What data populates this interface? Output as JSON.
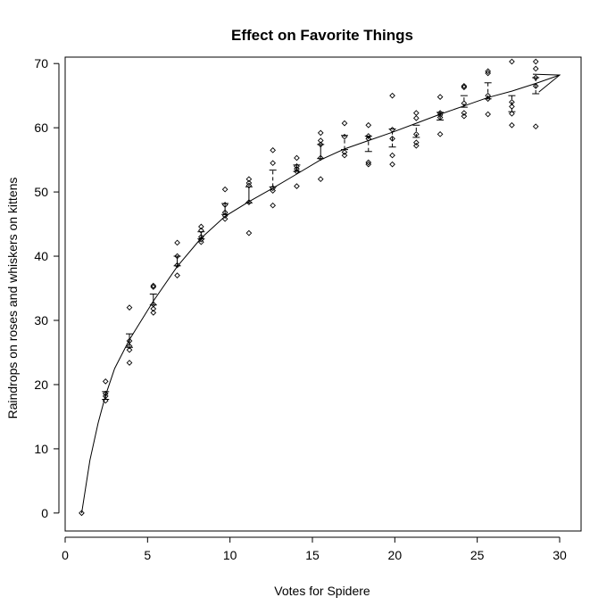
{
  "chart_data": {
    "type": "scatter",
    "title": "Effect on Favorite Things",
    "xlabel": "Votes for Spidere",
    "ylabel": "Raindrops on roses and whiskers on kittens",
    "xlim": [
      0,
      31.3
    ],
    "ylim": [
      -2.8,
      71
    ],
    "x_ticks": [
      0,
      5,
      10,
      15,
      20,
      25,
      30
    ],
    "y_ticks": [
      0,
      10,
      20,
      30,
      40,
      50,
      60,
      70
    ],
    "grid": false,
    "legend": "none",
    "points": [
      {
        "x": 1.0,
        "y": 0.0
      },
      {
        "x": 2.45,
        "y": 20.5
      },
      {
        "x": 2.45,
        "y": 18.6
      },
      {
        "x": 2.45,
        "y": 18.2
      },
      {
        "x": 2.45,
        "y": 17.5
      },
      {
        "x": 3.9,
        "y": 32.0
      },
      {
        "x": 3.9,
        "y": 26.8
      },
      {
        "x": 3.9,
        "y": 26.0
      },
      {
        "x": 3.9,
        "y": 25.4
      },
      {
        "x": 3.9,
        "y": 23.4
      },
      {
        "x": 5.35,
        "y": 35.4
      },
      {
        "x": 5.35,
        "y": 35.2
      },
      {
        "x": 5.35,
        "y": 32.5
      },
      {
        "x": 5.35,
        "y": 31.8
      },
      {
        "x": 5.35,
        "y": 31.2
      },
      {
        "x": 6.8,
        "y": 42.1
      },
      {
        "x": 6.8,
        "y": 40.0
      },
      {
        "x": 6.8,
        "y": 38.6
      },
      {
        "x": 6.8,
        "y": 37.0
      },
      {
        "x": 8.25,
        "y": 44.6
      },
      {
        "x": 8.25,
        "y": 44.0
      },
      {
        "x": 8.25,
        "y": 43.0
      },
      {
        "x": 8.25,
        "y": 42.6
      },
      {
        "x": 8.25,
        "y": 42.2
      },
      {
        "x": 9.7,
        "y": 50.4
      },
      {
        "x": 9.7,
        "y": 48.0
      },
      {
        "x": 9.7,
        "y": 46.8
      },
      {
        "x": 9.7,
        "y": 46.3
      },
      {
        "x": 9.7,
        "y": 45.8
      },
      {
        "x": 11.15,
        "y": 52.0
      },
      {
        "x": 11.15,
        "y": 51.4
      },
      {
        "x": 11.15,
        "y": 51.0
      },
      {
        "x": 11.15,
        "y": 48.4
      },
      {
        "x": 11.15,
        "y": 43.6
      },
      {
        "x": 12.6,
        "y": 56.5
      },
      {
        "x": 12.6,
        "y": 54.5
      },
      {
        "x": 12.6,
        "y": 50.6
      },
      {
        "x": 12.6,
        "y": 50.2
      },
      {
        "x": 12.6,
        "y": 47.9
      },
      {
        "x": 14.05,
        "y": 55.3
      },
      {
        "x": 14.05,
        "y": 54.0
      },
      {
        "x": 14.05,
        "y": 53.6
      },
      {
        "x": 14.05,
        "y": 53.2
      },
      {
        "x": 14.05,
        "y": 50.9
      },
      {
        "x": 15.5,
        "y": 59.2
      },
      {
        "x": 15.5,
        "y": 58.0
      },
      {
        "x": 15.5,
        "y": 57.4
      },
      {
        "x": 15.5,
        "y": 55.3
      },
      {
        "x": 15.5,
        "y": 52.0
      },
      {
        "x": 16.95,
        "y": 60.7
      },
      {
        "x": 16.95,
        "y": 58.6
      },
      {
        "x": 16.95,
        "y": 56.2
      },
      {
        "x": 16.95,
        "y": 55.7
      },
      {
        "x": 18.4,
        "y": 60.4
      },
      {
        "x": 18.4,
        "y": 58.7
      },
      {
        "x": 18.4,
        "y": 58.3
      },
      {
        "x": 18.4,
        "y": 54.6
      },
      {
        "x": 18.4,
        "y": 54.3
      },
      {
        "x": 19.85,
        "y": 65.0
      },
      {
        "x": 19.85,
        "y": 59.7
      },
      {
        "x": 19.85,
        "y": 58.3
      },
      {
        "x": 19.85,
        "y": 55.7
      },
      {
        "x": 19.85,
        "y": 54.3
      },
      {
        "x": 21.3,
        "y": 62.3
      },
      {
        "x": 21.3,
        "y": 61.5
      },
      {
        "x": 21.3,
        "y": 59.0
      },
      {
        "x": 21.3,
        "y": 57.7
      },
      {
        "x": 21.3,
        "y": 57.2
      },
      {
        "x": 22.75,
        "y": 64.8
      },
      {
        "x": 22.75,
        "y": 62.3
      },
      {
        "x": 22.75,
        "y": 62.0
      },
      {
        "x": 22.75,
        "y": 61.6
      },
      {
        "x": 22.75,
        "y": 59.0
      },
      {
        "x": 24.2,
        "y": 66.5
      },
      {
        "x": 24.2,
        "y": 66.3
      },
      {
        "x": 24.2,
        "y": 63.8
      },
      {
        "x": 24.2,
        "y": 62.3
      },
      {
        "x": 24.2,
        "y": 61.8
      },
      {
        "x": 25.65,
        "y": 68.8
      },
      {
        "x": 25.65,
        "y": 68.5
      },
      {
        "x": 25.65,
        "y": 65.0
      },
      {
        "x": 25.65,
        "y": 64.5
      },
      {
        "x": 25.65,
        "y": 62.1
      },
      {
        "x": 27.1,
        "y": 70.3
      },
      {
        "x": 27.1,
        "y": 64.0
      },
      {
        "x": 27.1,
        "y": 63.3
      },
      {
        "x": 27.1,
        "y": 62.2
      },
      {
        "x": 27.1,
        "y": 60.4
      },
      {
        "x": 28.55,
        "y": 70.3
      },
      {
        "x": 28.55,
        "y": 69.2
      },
      {
        "x": 28.55,
        "y": 67.8
      },
      {
        "x": 28.55,
        "y": 66.5
      },
      {
        "x": 28.55,
        "y": 60.2
      }
    ],
    "error_bars": [
      {
        "x": 2.45,
        "low": 17.7,
        "high": 18.9,
        "dashed": false
      },
      {
        "x": 3.9,
        "low": 25.8,
        "high": 27.9,
        "dashed": false
      },
      {
        "x": 5.35,
        "low": 32.4,
        "high": 34.1,
        "dashed": false
      },
      {
        "x": 6.8,
        "low": 38.5,
        "high": 40.0,
        "dashed": false
      },
      {
        "x": 8.25,
        "low": 42.7,
        "high": 43.8,
        "dashed": false
      },
      {
        "x": 9.7,
        "low": 46.5,
        "high": 48.2,
        "dashed": false
      },
      {
        "x": 11.15,
        "low": 48.3,
        "high": 50.8,
        "dashed": false
      },
      {
        "x": 12.6,
        "low": 50.8,
        "high": 53.4,
        "dashed": true
      },
      {
        "x": 14.05,
        "low": 53.2,
        "high": 54.2,
        "dashed": false
      },
      {
        "x": 15.5,
        "low": 55.2,
        "high": 57.4,
        "dashed": false
      },
      {
        "x": 16.95,
        "low": 56.6,
        "high": 58.8,
        "dashed": true
      },
      {
        "x": 18.4,
        "low": 56.3,
        "high": 58.7,
        "dashed": true
      },
      {
        "x": 19.85,
        "low": 57.0,
        "high": 59.8,
        "dashed": true
      },
      {
        "x": 21.3,
        "low": 58.5,
        "high": 60.4,
        "dashed": true
      },
      {
        "x": 22.75,
        "low": 61.2,
        "high": 62.4,
        "dashed": true
      },
      {
        "x": 24.2,
        "low": 63.2,
        "high": 65.0,
        "dashed": true
      },
      {
        "x": 25.65,
        "low": 64.5,
        "high": 67.0,
        "dashed": true
      },
      {
        "x": 27.1,
        "low": 62.5,
        "high": 65.0,
        "dashed": true
      },
      {
        "x": 28.55,
        "low": 65.3,
        "high": 67.8,
        "dashed": true
      }
    ],
    "curve": [
      [
        1.0,
        0.0
      ],
      [
        1.5,
        8.2
      ],
      [
        2.0,
        14.0
      ],
      [
        2.45,
        18.3
      ],
      [
        3.0,
        22.5
      ],
      [
        3.9,
        27.0
      ],
      [
        5.35,
        33.0
      ],
      [
        6.8,
        38.4
      ],
      [
        8.25,
        42.8
      ],
      [
        9.7,
        46.2
      ],
      [
        11.15,
        48.5
      ],
      [
        12.6,
        50.6
      ],
      [
        14.05,
        52.8
      ],
      [
        15.5,
        55.0
      ],
      [
        16.95,
        56.7
      ],
      [
        18.4,
        58.0
      ],
      [
        19.85,
        59.3
      ],
      [
        21.3,
        60.7
      ],
      [
        22.75,
        62.1
      ],
      [
        24.2,
        63.4
      ],
      [
        25.65,
        64.7
      ],
      [
        27.1,
        65.7
      ],
      [
        28.55,
        66.9
      ],
      [
        30.0,
        68.2
      ]
    ],
    "arrow_tip": [
      30.0,
      68.2
    ]
  }
}
